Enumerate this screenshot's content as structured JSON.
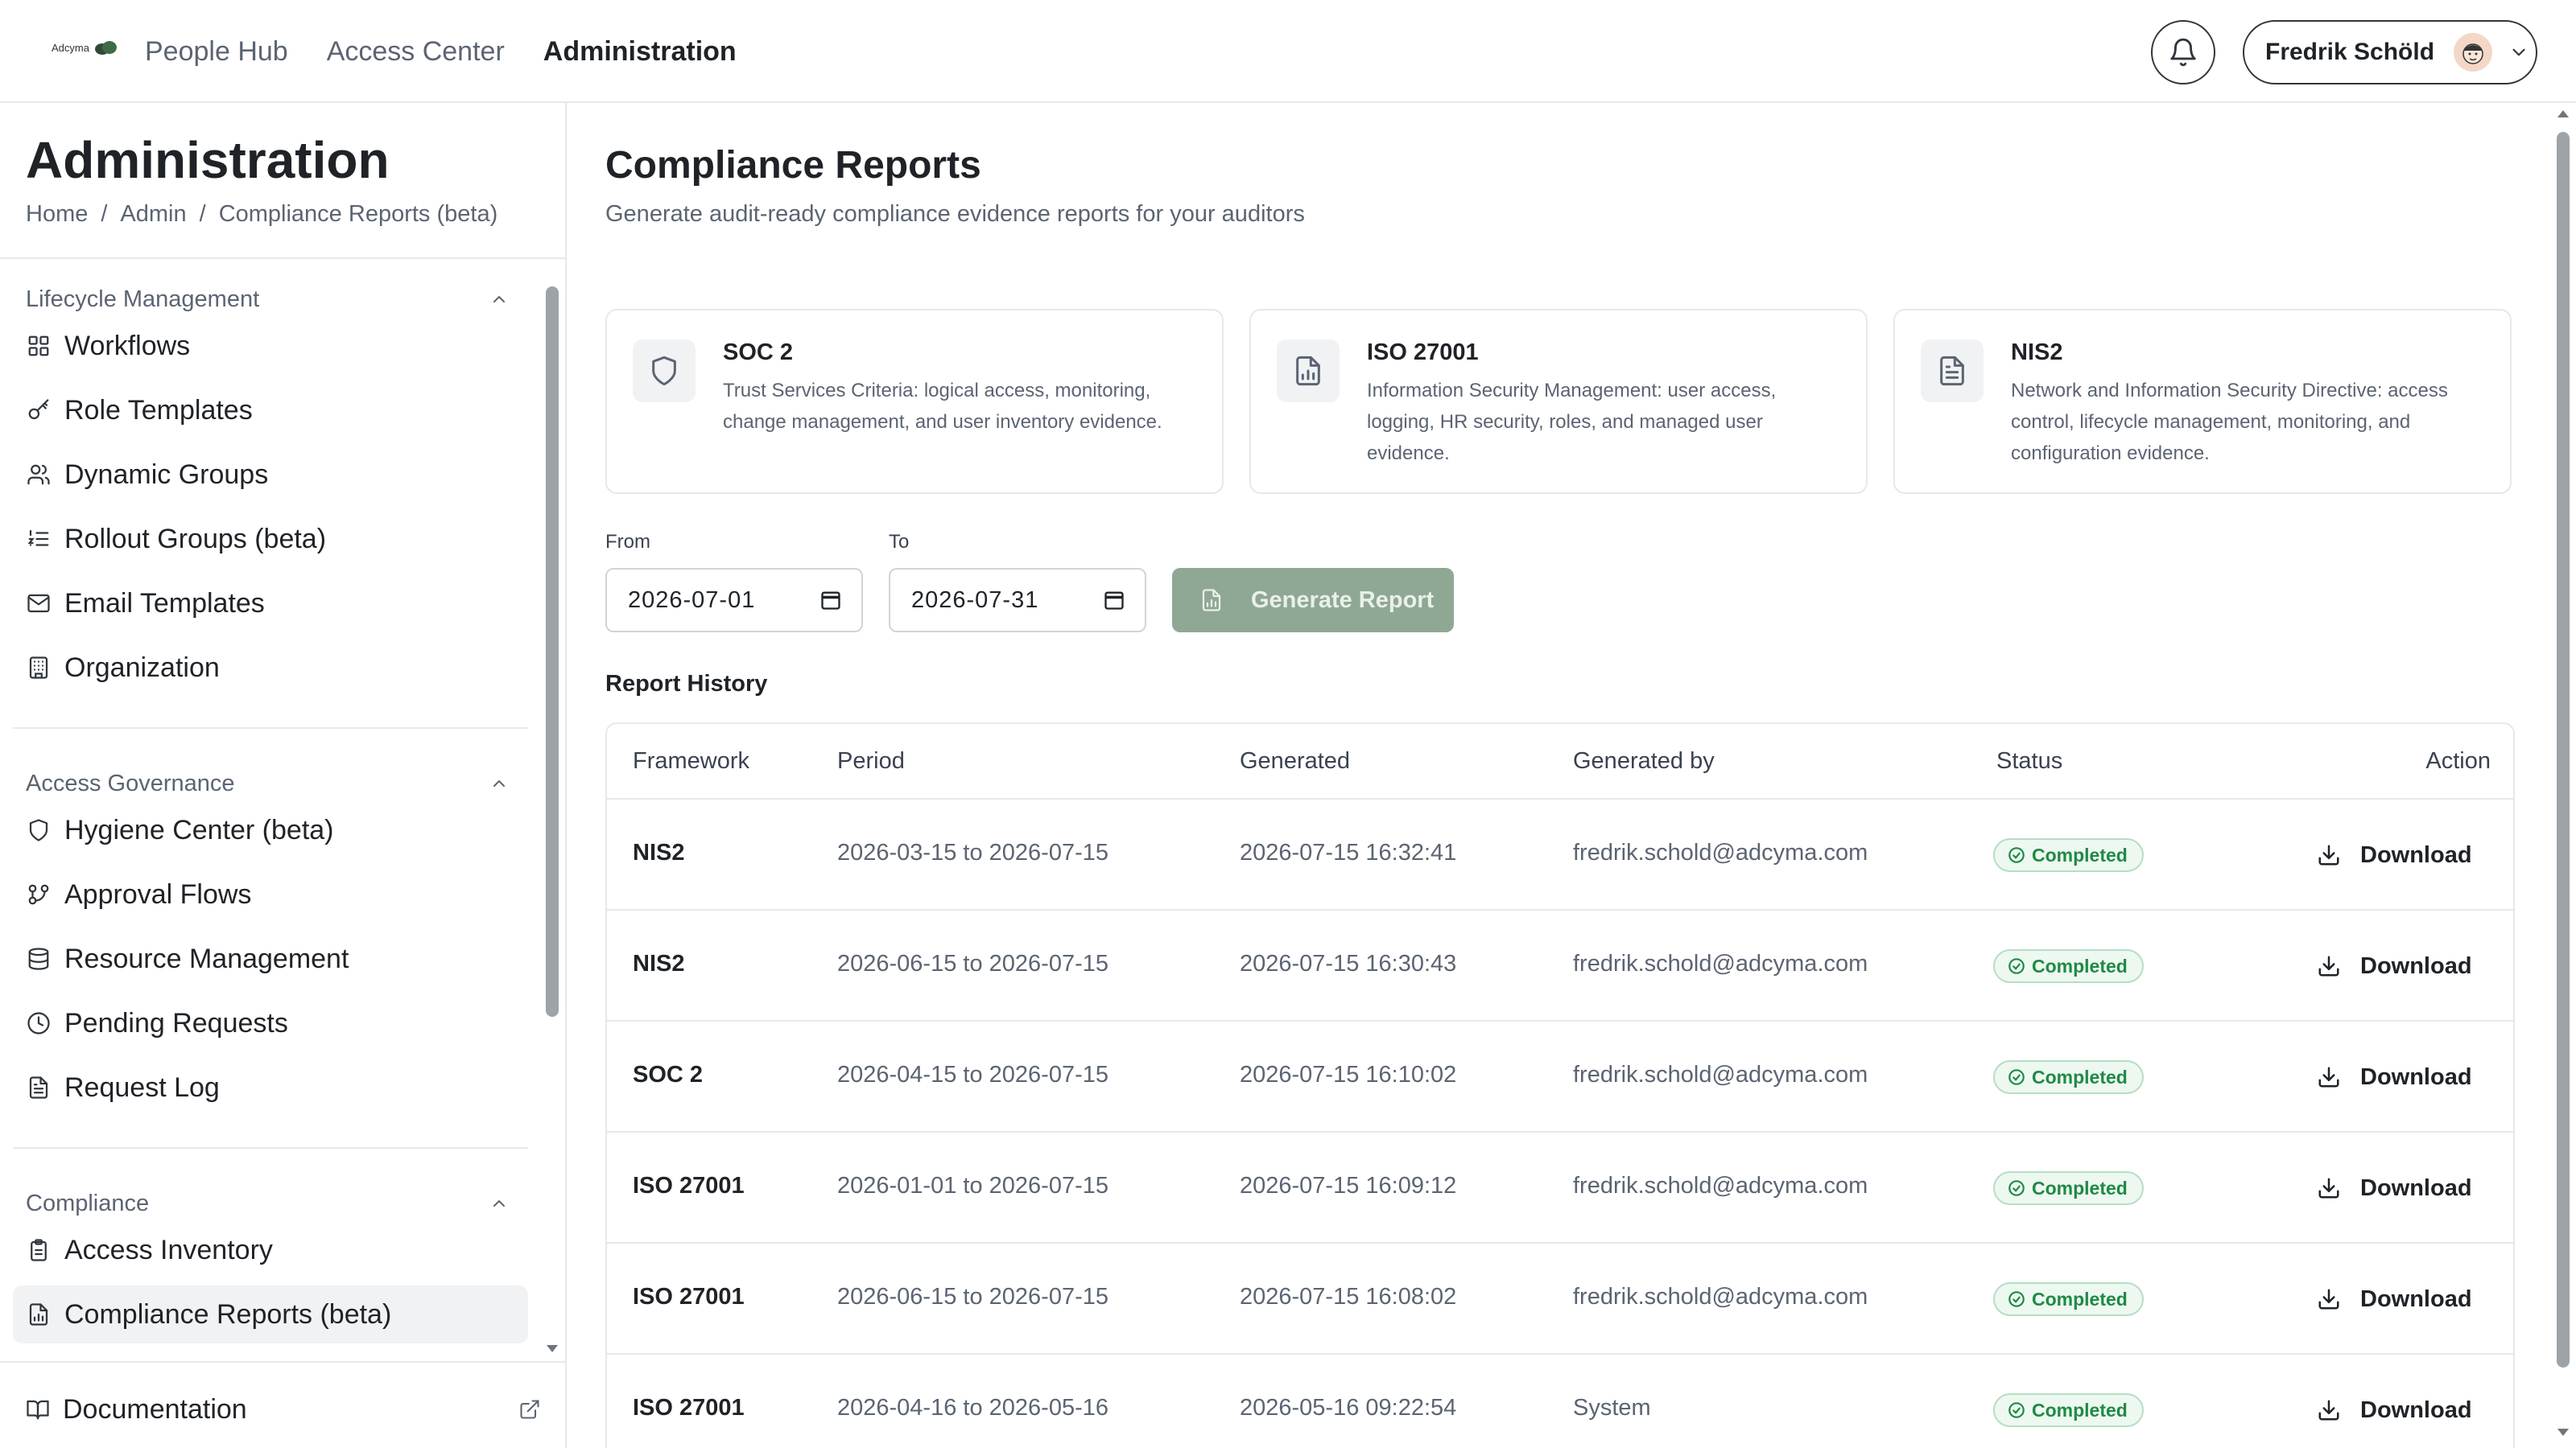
{
  "topbar": {
    "logo_text": "Adcyma",
    "nav": [
      {
        "label": "People Hub"
      },
      {
        "label": "Access Center"
      },
      {
        "label": "Administration"
      }
    ],
    "user_name": "Fredrik Schöld"
  },
  "sidebar": {
    "title": "Administration",
    "breadcrumb": [
      "Home",
      "/",
      "Admin",
      "/",
      "Compliance Reports (beta)"
    ],
    "sections": [
      {
        "label": "Lifecycle Management",
        "items": [
          {
            "label": "Workflows",
            "icon": "grid-icon"
          },
          {
            "label": "Role Templates",
            "icon": "key-icon"
          },
          {
            "label": "Dynamic Groups",
            "icon": "users-icon"
          },
          {
            "label": "Rollout Groups (beta)",
            "icon": "list-ordered-icon"
          },
          {
            "label": "Email Templates",
            "icon": "mail-icon"
          },
          {
            "label": "Organization",
            "icon": "building-icon"
          }
        ]
      },
      {
        "label": "Access Governance",
        "items": [
          {
            "label": "Hygiene Center (beta)",
            "icon": "shield-icon"
          },
          {
            "label": "Approval Flows",
            "icon": "git-branch-icon"
          },
          {
            "label": "Resource Management",
            "icon": "database-icon"
          },
          {
            "label": "Pending Requests",
            "icon": "clock-icon"
          },
          {
            "label": "Request Log",
            "icon": "file-text-icon"
          }
        ]
      },
      {
        "label": "Compliance",
        "items": [
          {
            "label": "Access Inventory",
            "icon": "clipboard-icon"
          },
          {
            "label": "Compliance Reports (beta)",
            "icon": "file-chart-icon",
            "active": true
          }
        ]
      }
    ],
    "documentation_label": "Documentation"
  },
  "main": {
    "title": "Compliance Reports",
    "subtitle": "Generate audit-ready compliance evidence reports for your auditors",
    "frameworks": [
      {
        "name": "SOC 2",
        "icon": "shield-icon",
        "description": "Trust Services Criteria: logical access, monitoring, change management, and user inventory evidence."
      },
      {
        "name": "ISO 27001",
        "icon": "file-chart-icon",
        "description": "Information Security Management: user access, logging, HR security, roles, and managed user evidence."
      },
      {
        "name": "NIS2",
        "icon": "file-text-icon",
        "description": "Network and Information Security Directive: access control, lifecycle management, monitoring, and configuration evidence."
      }
    ],
    "from_label": "From",
    "from_value": "2026-07-01",
    "to_label": "To",
    "to_value": "2026-07-31",
    "generate_label": "Generate Report",
    "history_title": "Report History",
    "columns": [
      "Framework",
      "Period",
      "Generated",
      "Generated by",
      "Status",
      "Action"
    ],
    "rows": [
      {
        "framework": "NIS2",
        "period": "2026-03-15 to 2026-07-15",
        "generated": "2026-07-15 16:32:41",
        "by": "fredrik.schold@adcyma.com",
        "status": "Completed",
        "action": "Download"
      },
      {
        "framework": "NIS2",
        "period": "2026-06-15 to 2026-07-15",
        "generated": "2026-07-15 16:30:43",
        "by": "fredrik.schold@adcyma.com",
        "status": "Completed",
        "action": "Download"
      },
      {
        "framework": "SOC 2",
        "period": "2026-04-15 to 2026-07-15",
        "generated": "2026-07-15 16:10:02",
        "by": "fredrik.schold@adcyma.com",
        "status": "Completed",
        "action": "Download"
      },
      {
        "framework": "ISO 27001",
        "period": "2026-01-01 to 2026-07-15",
        "generated": "2026-07-15 16:09:12",
        "by": "fredrik.schold@adcyma.com",
        "status": "Completed",
        "action": "Download"
      },
      {
        "framework": "ISO 27001",
        "period": "2026-06-15 to 2026-07-15",
        "generated": "2026-07-15 16:08:02",
        "by": "fredrik.schold@adcyma.com",
        "status": "Completed",
        "action": "Download"
      },
      {
        "framework": "ISO 27001",
        "period": "2026-04-16 to 2026-05-16",
        "generated": "2026-05-16 09:22:54",
        "by": "System",
        "status": "Completed",
        "action": "Download"
      }
    ]
  },
  "colors": {
    "accent_disabled": "#8fa894",
    "status_green": "#1f8a45",
    "status_bg": "#edf8f0"
  }
}
